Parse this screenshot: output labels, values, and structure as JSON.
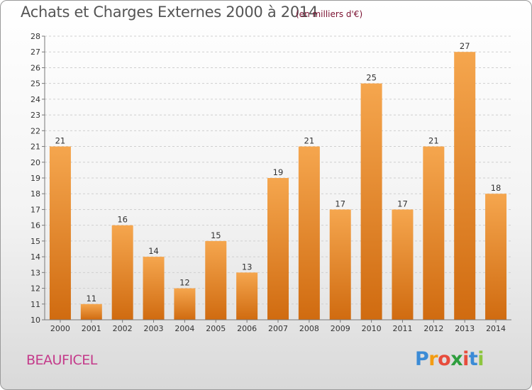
{
  "title": "Achats et Charges Externes 2000 à 2014",
  "subtitle": "(en milliers d'€)",
  "commune": "BEAUFICEL",
  "logo": {
    "letters": [
      "P",
      "r",
      "o",
      "x",
      "i",
      "t",
      "i"
    ],
    "colors": [
      "#3b8bd6",
      "#f39c12",
      "#e74c3c",
      "#2e9e3e",
      "#e74c3c",
      "#3b8bd6",
      "#8dc63f"
    ]
  },
  "colors": {
    "bar_top": "#f5a64e",
    "bar_bottom": "#d06b10",
    "grid": "#cfcfcf",
    "axis": "#777777",
    "title": "#555555",
    "commune": "#c43a8a"
  },
  "chart_data": {
    "type": "bar",
    "categories": [
      "2000",
      "2001",
      "2002",
      "2003",
      "2004",
      "2005",
      "2006",
      "2007",
      "2008",
      "2009",
      "2010",
      "2011",
      "2012",
      "2013",
      "2014"
    ],
    "values": [
      21,
      11,
      16,
      14,
      12,
      15,
      13,
      19,
      21,
      17,
      25,
      17,
      21,
      27,
      18
    ],
    "ylim": [
      10,
      28
    ],
    "yticks": [
      10,
      11,
      12,
      13,
      14,
      15,
      16,
      17,
      18,
      19,
      20,
      21,
      22,
      23,
      24,
      25,
      26,
      27,
      28
    ],
    "grid": true,
    "data_labels": true
  }
}
